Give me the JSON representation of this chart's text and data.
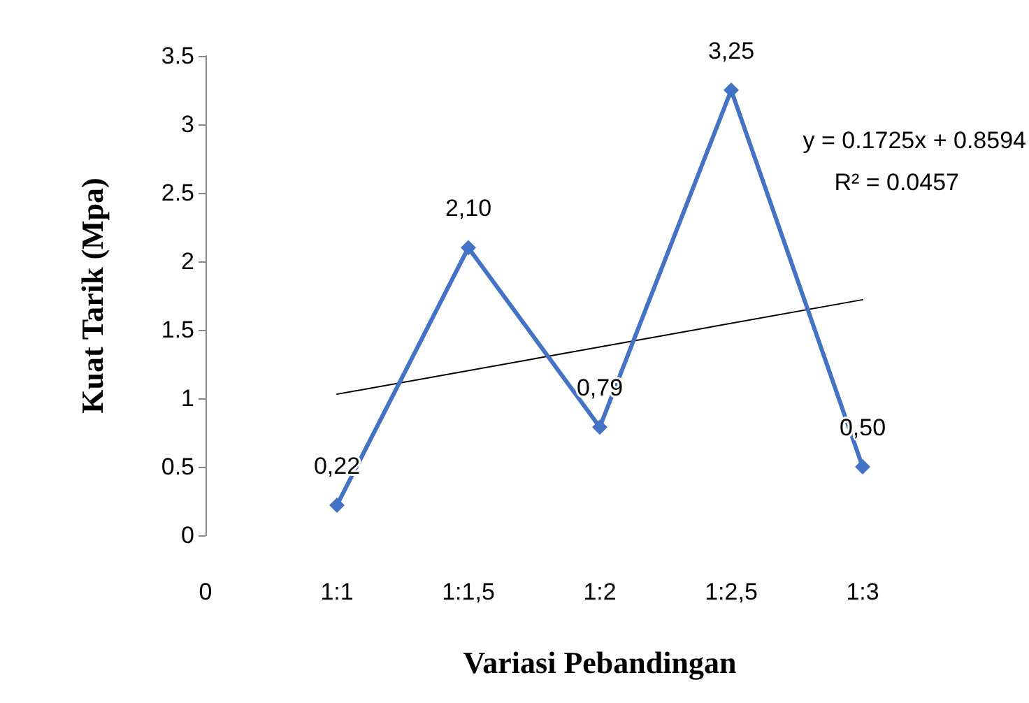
{
  "chart_data": {
    "type": "line",
    "xlabel": "Variasi Pebandingan",
    "ylabel": "Kuat Tarik (Mpa)",
    "categories": [
      "0",
      "1:1",
      "1:1,5",
      "1:2",
      "1:2,5",
      "1:3",
      null
    ],
    "series": [
      {
        "color": "#4472c4",
        "values": [
          null,
          0.22,
          2.1,
          0.79,
          3.25,
          0.5,
          null
        ],
        "marker": "diamond",
        "value_labels": [
          null,
          "0,22",
          "2,10",
          "0,79",
          "3,25",
          "0,50",
          null
        ]
      },
      {
        "type": "line",
        "color": "#000000",
        "x": [
          "1:1",
          "1:3"
        ],
        "values": [
          1.03,
          1.72
        ],
        "marker": "none"
      }
    ],
    "ylim": [
      0,
      3.5
    ],
    "yticks": [
      0,
      0.5,
      1,
      1.5,
      2,
      2.5,
      3,
      3.5
    ],
    "annotations": [
      "y = 0.1725x + 0.8594",
      "R² = 0.0457"
    ],
    "grid": false
  }
}
